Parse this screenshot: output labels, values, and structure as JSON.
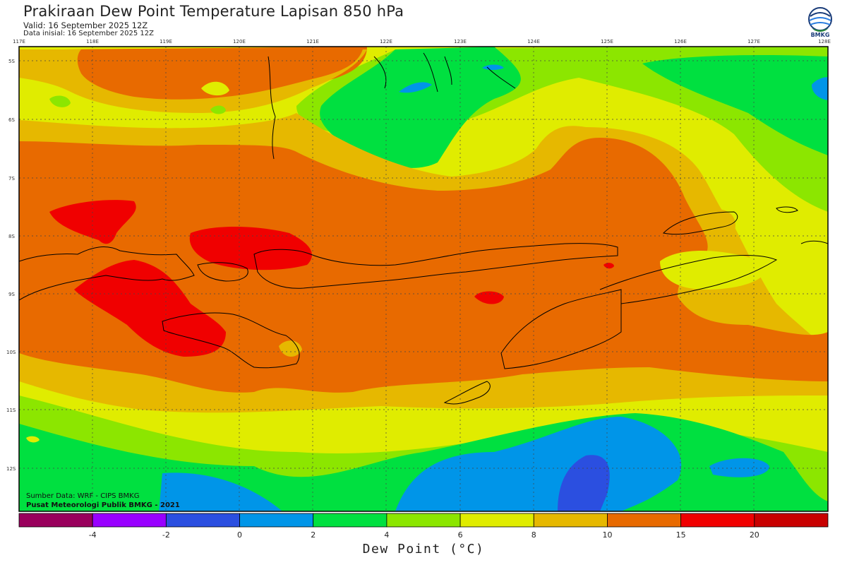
{
  "header": {
    "title": "Prakiraan Dew Point Temperature Lapisan 850 hPa",
    "valid": "Valid: 16 September 2025 12Z",
    "init": "Data inisial: 16 September 2025 12Z"
  },
  "logo": {
    "text": "BMKG",
    "icon": "bmkg-logo-icon"
  },
  "map": {
    "lon_labels": [
      "117E",
      "118E",
      "119E",
      "120E",
      "121E",
      "122E",
      "123E",
      "124E",
      "125E",
      "126E",
      "127E",
      "128E"
    ],
    "lat_labels": [
      "5S",
      "6S",
      "7S",
      "8S",
      "9S",
      "10S",
      "11S",
      "12S"
    ]
  },
  "credits": {
    "source": "Sumber Data: WRF - CIPS BMKG",
    "org": "Pusat Meteorologi Publik BMKG - 2021"
  },
  "colorbar": {
    "colors": [
      "#99005c",
      "#9900ff",
      "#2b4fe0",
      "#0095e8",
      "#00e040",
      "#8ce600",
      "#e0ec00",
      "#e6b800",
      "#e86a00",
      "#f00000",
      "#c80000"
    ],
    "tick_labels": [
      "-4",
      "-2",
      "0",
      "2",
      "4",
      "6",
      "8",
      "10",
      "15",
      "20"
    ],
    "unit_label": "Dew Point (°C)"
  },
  "colors": {
    "red": "#f00000",
    "orange": "#e86a00",
    "amber": "#e6b800",
    "yellow": "#e0ec00",
    "lime": "#8ce600",
    "green": "#00e040",
    "lightblue": "#0095e8",
    "blue": "#2b4fe0"
  }
}
